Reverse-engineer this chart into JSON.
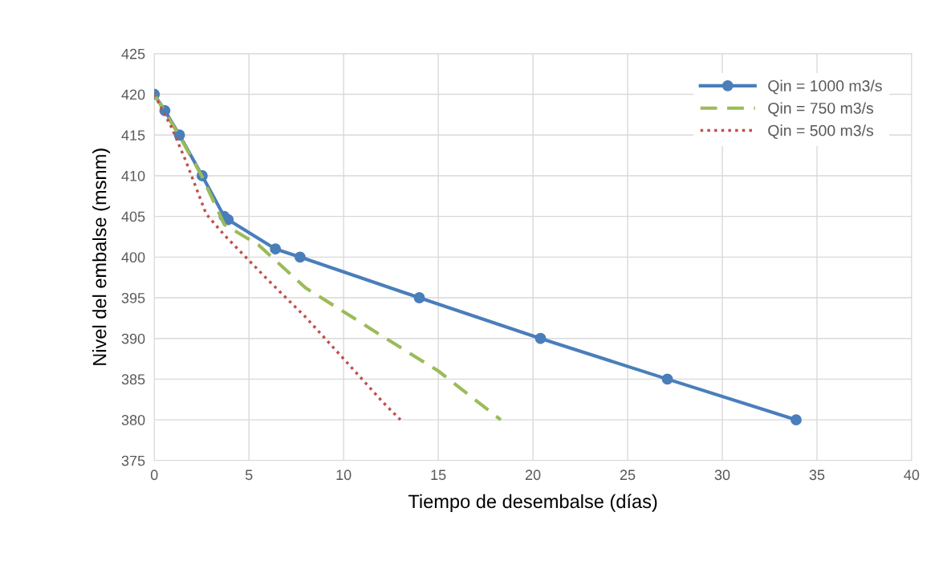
{
  "chart_data": {
    "type": "line",
    "xlabel": "Tiempo de desembalse (días)",
    "ylabel": "Nivel del embalse (msnm)",
    "xlim": [
      0,
      40
    ],
    "xticks": [
      0,
      5,
      10,
      15,
      20,
      25,
      30,
      35,
      40
    ],
    "ylim": [
      375,
      425
    ],
    "yticks": [
      375,
      380,
      385,
      390,
      395,
      400,
      405,
      410,
      415,
      420,
      425
    ],
    "grid": true,
    "legend": "top right",
    "series": [
      {
        "name": "Qin = 1000 m3/s",
        "color": "#4a7ebb",
        "marker": "circle",
        "line_style": "solid",
        "x": [
          0,
          0.56,
          1.33,
          2.53,
          3.69,
          3.9,
          6.4,
          7.7,
          14.0,
          20.4,
          27.1,
          33.9
        ],
        "values": [
          420,
          418,
          415,
          410,
          405,
          404.6,
          401,
          400,
          395,
          390,
          385,
          380
        ]
      },
      {
        "name": "Qin = 750 m3/s",
        "color": "#9bbb59",
        "marker": "none",
        "line_style": "dashed",
        "x": [
          0,
          1.3,
          2.5,
          3.7,
          5.5,
          8.0,
          10.4,
          12.1,
          15.0,
          18.3
        ],
        "values": [
          420,
          415,
          410,
          404,
          401.5,
          396.2,
          392.7,
          390.2,
          386,
          380
        ]
      },
      {
        "name": "Qin = 500 m3/s",
        "color": "#c0504d",
        "marker": "none",
        "line_style": "dotted",
        "x": [
          0,
          0.9,
          1.67,
          2.74,
          3.7,
          6.0,
          8.0,
          10.0,
          12.1,
          13.0
        ],
        "values": [
          420,
          416,
          411.8,
          405.3,
          402.7,
          397.2,
          392.6,
          387.5,
          382.1,
          380
        ]
      }
    ]
  }
}
